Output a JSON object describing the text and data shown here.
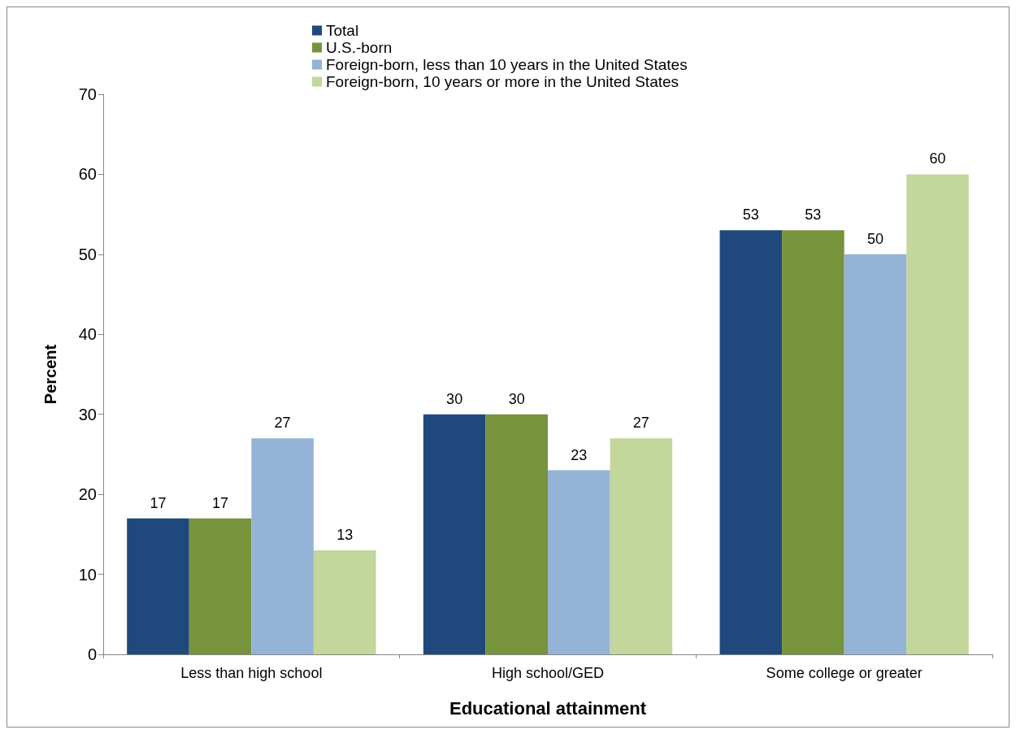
{
  "chart_data": {
    "type": "bar",
    "xlabel": "Educational attainment",
    "ylabel": "Percent",
    "categories": [
      "Less than high school",
      "High school/GED",
      "Some college or greater"
    ],
    "series": [
      {
        "name": "Total",
        "color": "#1f497d",
        "values": [
          17,
          30,
          53
        ]
      },
      {
        "name": "U.S.-born",
        "color": "#77933c",
        "values": [
          17,
          30,
          53
        ]
      },
      {
        "name": "Foreign-born, less than 10 years in the United States",
        "color": "#95b3d7",
        "values": [
          27,
          23,
          50
        ]
      },
      {
        "name": "Foreign-born, 10 years or more in the United States",
        "color": "#c3d69b",
        "values": [
          13,
          27,
          60
        ]
      }
    ],
    "ylim": [
      0,
      70
    ],
    "yticks": [
      0,
      10,
      20,
      30,
      40,
      50,
      60,
      70
    ],
    "data_labels": true,
    "grid": false,
    "legend": "top"
  }
}
